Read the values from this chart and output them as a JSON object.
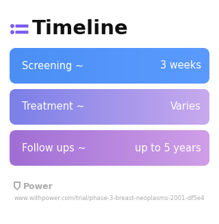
{
  "title": "Timeline",
  "background_color": "#ffffff",
  "rows": [
    {
      "label": "Screening ~",
      "value": "3 weeks",
      "color_left": "#4B8FF5",
      "color_right": "#5B9BFF"
    },
    {
      "label": "Treatment ~",
      "value": "Varies",
      "color_left": "#7B7FE8",
      "color_right": "#C8AAEE"
    },
    {
      "label": "Follow ups ~",
      "value": "up to 5 years",
      "color_left": "#A06ED4",
      "color_right": "#D09FE8"
    }
  ],
  "footer_logo": "Power",
  "footer_url": "www.withpower.com/trial/phase-3-breast-neoplasms-2001-df5e4",
  "title_fontsize": 21,
  "label_fontsize": 10.5,
  "value_fontsize": 10.5,
  "footer_fontsize": 6.2,
  "icon_color": "#7B5CF0",
  "title_color": "#111111",
  "text_color": "#ffffff",
  "footer_color": "#aaaaaa",
  "footer_logo_fontsize": 9
}
